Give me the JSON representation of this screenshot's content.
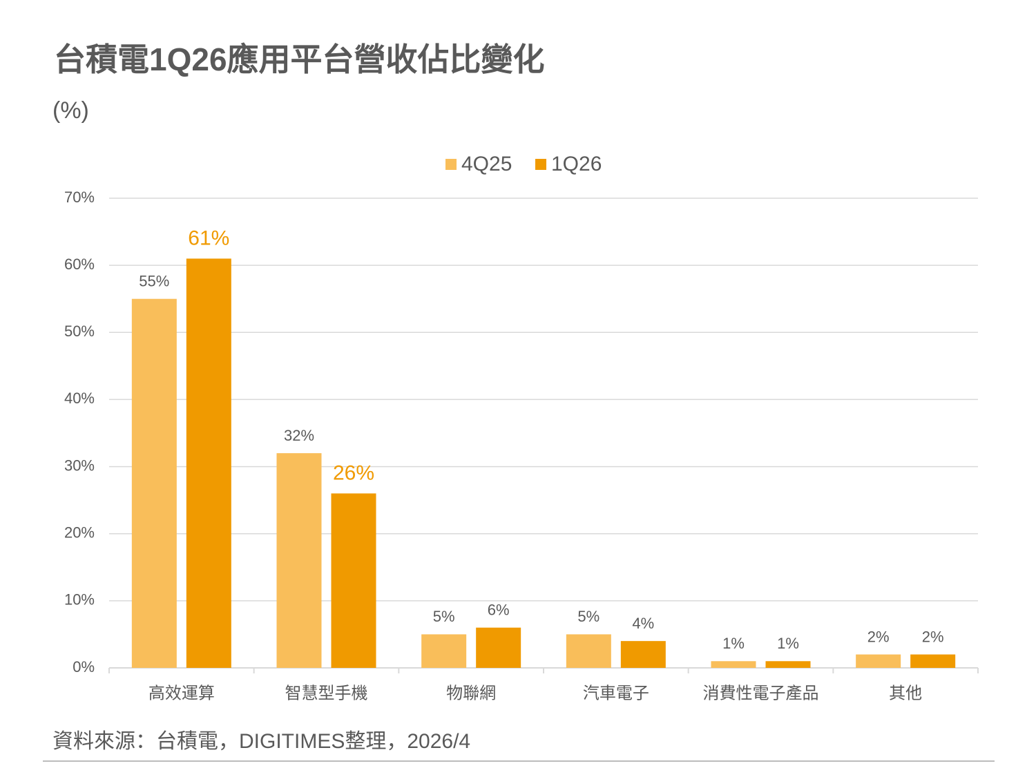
{
  "chart_data": {
    "type": "bar",
    "title": "台積電1Q26應用平台營收佔比變化",
    "subtitle": "(%)",
    "source": "資料來源：台積電，DIGITIMES整理，2026/4",
    "categories": [
      "高效運算",
      "智慧型手機",
      "物聯網",
      "汽車電子",
      "消費性電子產品",
      "其他"
    ],
    "series": [
      {
        "name": "4Q25",
        "color": "#f9be5a",
        "values": [
          55,
          32,
          5,
          5,
          1,
          2
        ],
        "value_labels": [
          "55%",
          "32%",
          "5%",
          "5%",
          "1%",
          "2%"
        ]
      },
      {
        "name": "1Q26",
        "color": "#f09a00",
        "values": [
          61,
          26,
          6,
          4,
          1,
          2
        ],
        "value_labels": [
          "61%",
          "26%",
          "6%",
          "4%",
          "1%",
          "2%"
        ]
      }
    ],
    "ylim": [
      0,
      70
    ],
    "yticks": [
      {
        "value": 0,
        "label": "0%"
      },
      {
        "value": 10,
        "label": "10%"
      },
      {
        "value": 20,
        "label": "20%"
      },
      {
        "value": 30,
        "label": "30%"
      },
      {
        "value": 40,
        "label": "40%"
      },
      {
        "value": 50,
        "label": "50%"
      },
      {
        "value": 60,
        "label": "60%"
      },
      {
        "value": 70,
        "label": "70%"
      }
    ],
    "grid": true,
    "legend": "top"
  }
}
